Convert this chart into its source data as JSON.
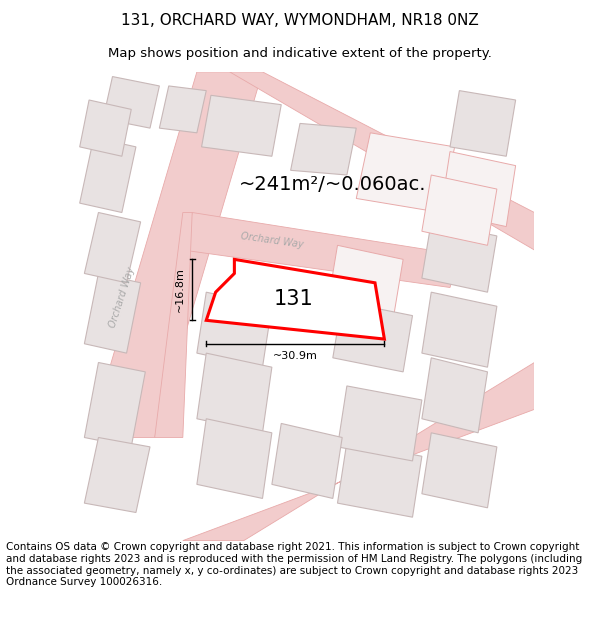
{
  "title": "131, ORCHARD WAY, WYMONDHAM, NR18 0NZ",
  "subtitle": "Map shows position and indicative extent of the property.",
  "footer": "Contains OS data © Crown copyright and database right 2021. This information is subject to Crown copyright and database rights 2023 and is reproduced with the permission of HM Land Registry. The polygons (including the associated geometry, namely x, y co-ordinates) are subject to Crown copyright and database rights 2023 Ordnance Survey 100026316.",
  "map_bg": "#f7f2f2",
  "road_color": "#f2cccc",
  "road_edge": "#e8aaaa",
  "building_fill": "#e8e2e2",
  "building_edge": "#c8b8b8",
  "outline_fill": "#f7f2f2",
  "outline_edge": "#e8aaaa",
  "highlight_color": "#ff0000",
  "area_label": "~241m²/~0.060ac.",
  "number_label": "131",
  "width_label": "~30.9m",
  "height_label": "~16.8m",
  "title_fontsize": 11,
  "subtitle_fontsize": 9.5,
  "footer_fontsize": 7.5,
  "road_label_color": "#aaaaaa",
  "dim_color": "#000000"
}
